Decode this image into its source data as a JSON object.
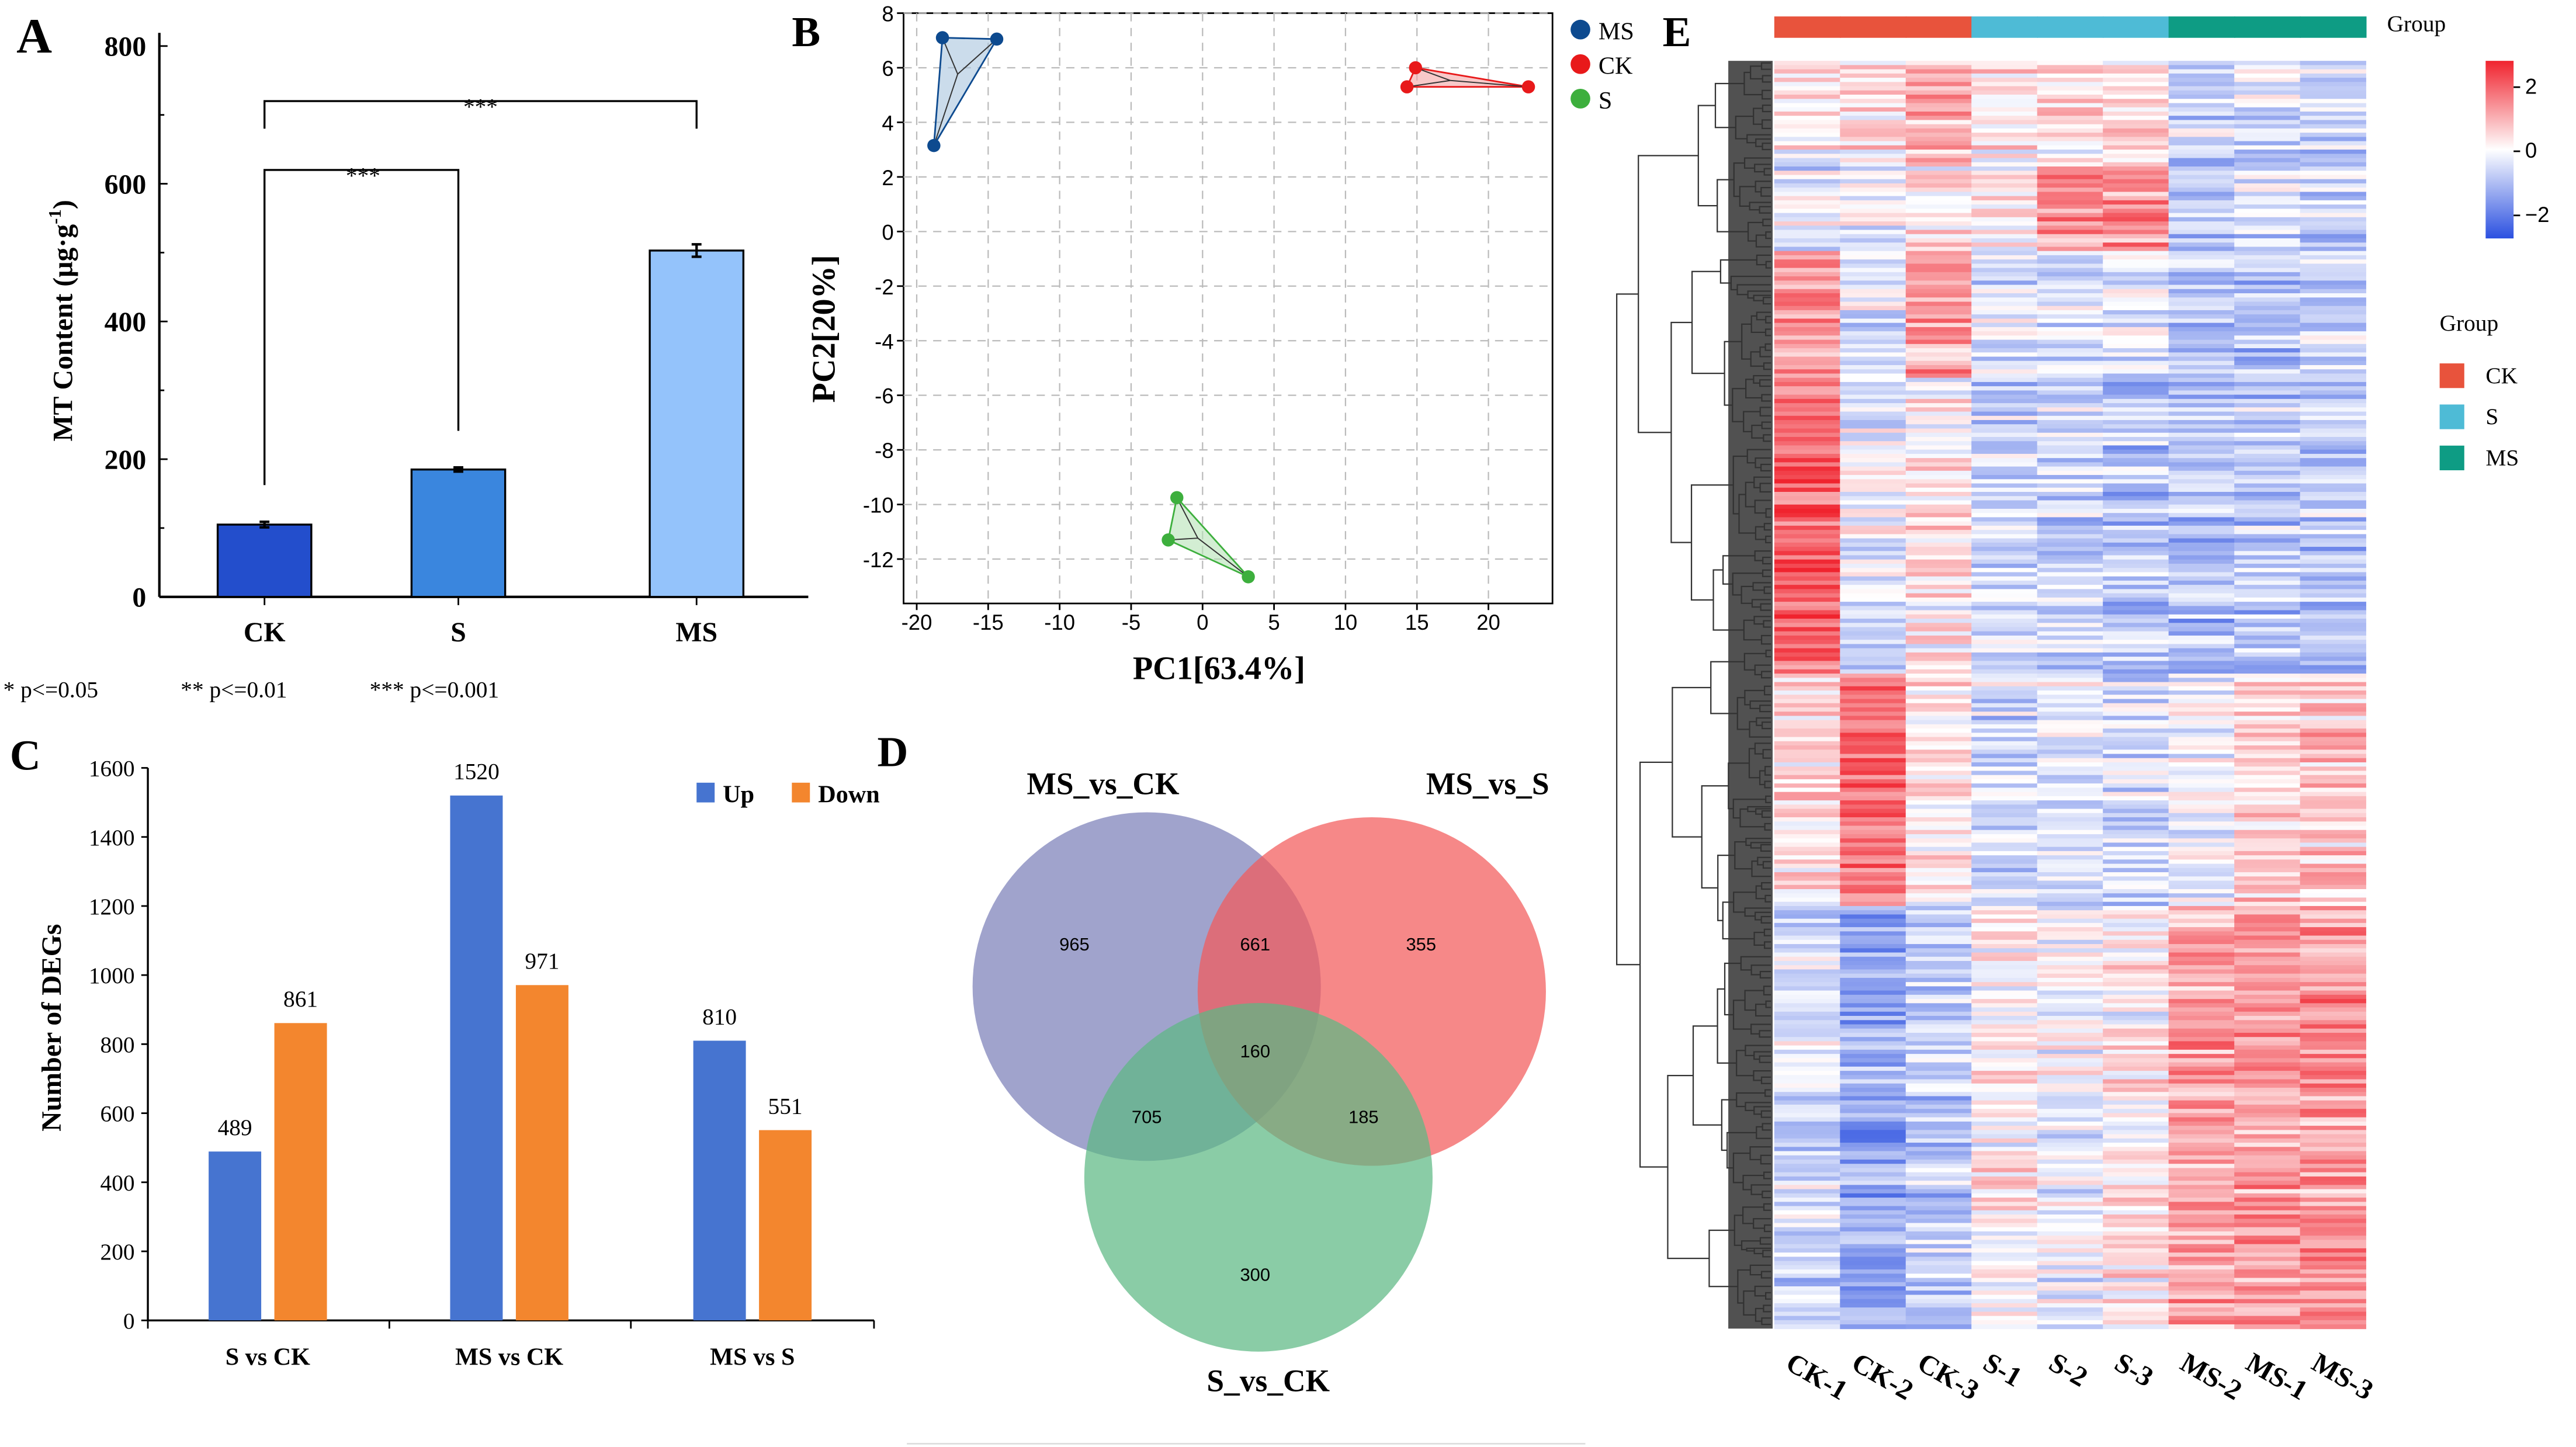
{
  "panels": {
    "A": "A",
    "B": "B",
    "C": "C",
    "D": "D",
    "E": "E"
  },
  "chart_data": [
    {
      "id": "A",
      "type": "bar",
      "ylabel": "MT Content (μg·g",
      "ylabel_sup": "-1",
      "ylabel_close": ")",
      "categories": [
        "CK",
        "S",
        "MS"
      ],
      "values": [
        105,
        185,
        503
      ],
      "errors": [
        4,
        3,
        9
      ],
      "colors": [
        "#234ECC",
        "#3A86DE",
        "#94C3FB"
      ],
      "ylim": [
        0,
        800
      ],
      "yticks": [
        0,
        200,
        400,
        600,
        800
      ],
      "significance": [
        {
          "from": "CK",
          "to": "S",
          "label": "***",
          "level": 620
        },
        {
          "from": "CK",
          "to": "MS",
          "label": "***",
          "level": 720
        }
      ],
      "footnote": [
        "* p<=0.05",
        "** p<=0.01",
        "*** p<=0.001"
      ]
    },
    {
      "id": "B",
      "type": "scatter",
      "xlabel": "PC1[63.4%]",
      "ylabel": "PC2[20%]",
      "xlim": [
        -20.5,
        25
      ],
      "ylim": [
        -13.5,
        8
      ],
      "xticks": [
        -20,
        -15,
        -10,
        -5,
        0,
        5,
        10,
        15,
        20
      ],
      "yticks": [
        8,
        6,
        4,
        2,
        0,
        -2,
        -4,
        -6,
        -8,
        -10,
        -12
      ],
      "grid": true,
      "legend_position": "right-top",
      "series": [
        {
          "name": "MS",
          "color": "#0D4A8F",
          "fill": "#A9C4DE",
          "points": [
            [
              -18.2,
              7.1
            ],
            [
              -14.4,
              7.05
            ],
            [
              -18.8,
              3.15
            ]
          ]
        },
        {
          "name": "CK",
          "color": "#E8191A",
          "fill": "#F4A5A5",
          "points": [
            [
              14.9,
              6.0
            ],
            [
              14.3,
              5.3
            ],
            [
              22.8,
              5.3
            ]
          ]
        },
        {
          "name": "S",
          "color": "#3DAF3D",
          "fill": "#B6E2B6",
          "points": [
            [
              -1.8,
              -9.75
            ],
            [
              -2.4,
              -11.3
            ],
            [
              3.2,
              -12.65
            ]
          ]
        }
      ]
    },
    {
      "id": "C",
      "type": "bar",
      "ylabel": "Number of DEGs",
      "categories": [
        "S vs CK",
        "MS vs CK",
        "MS vs S"
      ],
      "series": [
        {
          "name": "Up",
          "color": "#4674D0",
          "values": [
            489,
            1520,
            810
          ]
        },
        {
          "name": "Down",
          "color": "#F3862E",
          "values": [
            861,
            971,
            551
          ]
        }
      ],
      "ylim": [
        0,
        1600
      ],
      "yticks": [
        0,
        200,
        400,
        600,
        800,
        1000,
        1200,
        1400,
        1600
      ],
      "legend_position": "top-right"
    },
    {
      "id": "D",
      "type": "venn",
      "sets": [
        {
          "name": "MS_vs_CK",
          "color": "#7C80B8"
        },
        {
          "name": "MS_vs_S",
          "color": "#F25A5A"
        },
        {
          "name": "S_vs_CK",
          "color": "#5DB883"
        }
      ],
      "regions": {
        "MS_vs_CK_only": 965,
        "MS_vs_S_only": 355,
        "S_vs_CK_only": 300,
        "MS_vs_CK_and_MS_vs_S": 661,
        "MS_vs_CK_and_S_vs_CK": 705,
        "MS_vs_S_and_S_vs_CK": 185,
        "all": 160
      }
    },
    {
      "id": "E",
      "type": "heatmap",
      "columns": [
        "CK-1",
        "CK-2",
        "CK-3",
        "S-1",
        "S-2",
        "S-3",
        "MS-2",
        "MS-1",
        "MS-3"
      ],
      "column_groups": [
        "CK",
        "CK",
        "CK",
        "S",
        "S",
        "S",
        "MS",
        "MS",
        "MS"
      ],
      "group_title": "Group",
      "groups": [
        {
          "name": "CK",
          "color": "#E8533C"
        },
        {
          "name": "S",
          "color": "#4EBBD6"
        },
        {
          "name": "MS",
          "color": "#0E9C84"
        }
      ],
      "colorbar": {
        "ticks": [
          2,
          0,
          -2
        ],
        "tick_labels": [
          "2",
          "0",
          "−2"
        ],
        "low": "#2B50E0",
        "mid": "#FFFFFF",
        "high": "#F0232E"
      }
    }
  ]
}
